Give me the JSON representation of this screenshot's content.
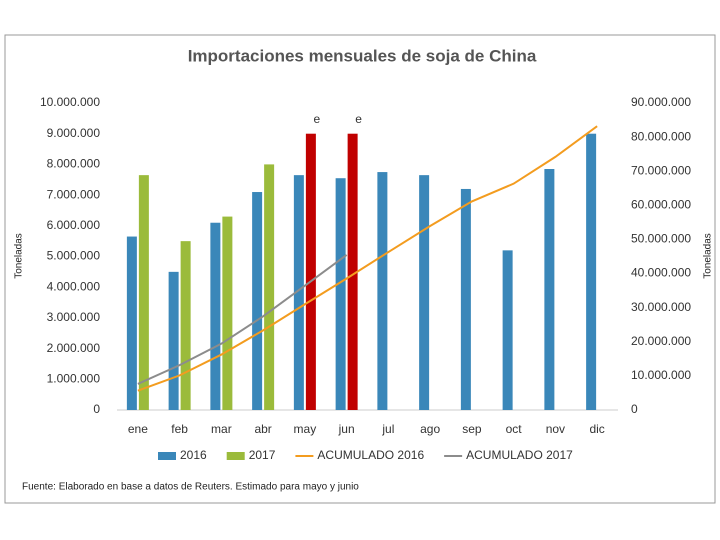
{
  "chart_data": {
    "type": "bar",
    "title": "Importaciones mensuales de soja de China",
    "y_label": "Toneladas",
    "y2_label": "Toneladas",
    "source": "Fuente: Elaborado en base a datos de Reuters. Estimado para mayo y junio",
    "annotations": [
      {
        "category": 4,
        "text": "e"
      },
      {
        "category": 5,
        "text": "e"
      }
    ],
    "categories": [
      "ene",
      "feb",
      "mar",
      "abr",
      "may",
      "jun",
      "jul",
      "ago",
      "sep",
      "oct",
      "nov",
      "dic"
    ],
    "series": [
      {
        "name": "2016",
        "type": "bar",
        "color": "#3a87b9",
        "values": [
          5650000,
          4500000,
          6100000,
          7100000,
          7650000,
          7550000,
          7750000,
          7650000,
          7200000,
          5200000,
          7850000,
          9000000
        ]
      },
      {
        "name": "2017",
        "type": "bar",
        "color": "#9bbb3b",
        "point_colors": [
          "#9bbb3b",
          "#9bbb3b",
          "#9bbb3b",
          "#9bbb3b",
          "#c00000",
          "#c00000",
          null,
          null,
          null,
          null,
          null,
          null
        ],
        "values": [
          7650000,
          5500000,
          6300000,
          8000000,
          9000000,
          9000000,
          null,
          null,
          null,
          null,
          null,
          null
        ]
      },
      {
        "name": "ACUMULADO 2016",
        "type": "line",
        "axis": "y2",
        "color": "#f39c1f",
        "values": [
          5650000,
          10150000,
          16250000,
          23350000,
          31000000,
          38550000,
          46300000,
          53950000,
          61150000,
          66350000,
          74200000,
          83200000
        ]
      },
      {
        "name": "ACUMULADO 2017",
        "type": "line",
        "axis": "y2",
        "color": "#8c8c8c",
        "values": [
          7650000,
          13150000,
          19450000,
          27450000,
          36450000,
          45450000,
          null,
          null,
          null,
          null,
          null,
          null
        ]
      }
    ],
    "ylim": [
      0,
      10000000
    ],
    "yticks": [
      0,
      {
        "value": 1000000,
        "label": "1.000.000"
      },
      {
        "value": 2000000,
        "label": "2.000.000"
      },
      {
        "value": 3000000,
        "label": "3.000.000"
      },
      {
        "value": 4000000,
        "label": "4.000.000"
      },
      {
        "value": 5000000,
        "label": "5.000.000"
      },
      {
        "value": 6000000,
        "label": "6.000.000"
      },
      {
        "value": 7000000,
        "label": "7.000.000"
      },
      {
        "value": 8000000,
        "label": "8.000.000"
      },
      {
        "value": 9000000,
        "label": "9.000.000"
      },
      {
        "value": 10000000,
        "label": "10.000.000"
      }
    ],
    "y2lim": [
      0,
      90000000
    ],
    "y2ticks": [
      0,
      {
        "value": 10000000,
        "label": "10.000.000"
      },
      {
        "value": 20000000,
        "label": "20.000.000"
      },
      {
        "value": 30000000,
        "label": "30.000.000"
      },
      {
        "value": 40000000,
        "label": "40.000.000"
      },
      {
        "value": 50000000,
        "label": "50.000.000"
      },
      {
        "value": 60000000,
        "label": "60.000.000"
      },
      {
        "value": 70000000,
        "label": "70.000.000"
      },
      {
        "value": 80000000,
        "label": "80.000.000"
      },
      {
        "value": 90000000,
        "label": "90.000.000"
      }
    ],
    "grid": false,
    "legend": "bottom"
  }
}
